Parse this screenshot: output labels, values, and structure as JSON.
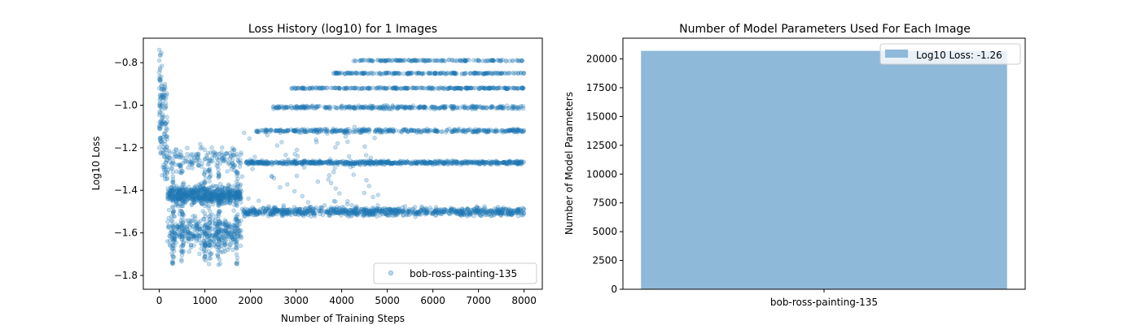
{
  "chart_data": [
    {
      "type": "scatter",
      "title": "Loss History (log10) for 1 Images",
      "xlabel": "Number of Training Steps",
      "ylabel": "Log10 Loss",
      "xlim": [
        -350,
        8400
      ],
      "ylim": [
        -1.865,
        -0.685
      ],
      "xticks": [
        0,
        1000,
        2000,
        3000,
        4000,
        5000,
        6000,
        7000,
        8000
      ],
      "yticks": [
        -1.8,
        -1.6,
        -1.4,
        -1.2,
        -1.0,
        -0.8
      ],
      "ytick_labels": [
        "−1.8",
        "−1.6",
        "−1.4",
        "−1.2",
        "−1.0",
        "−0.8"
      ],
      "color": "#1f77b4",
      "alpha": 0.25,
      "legend": {
        "placement": "lower-right",
        "entries": [
          "bob-ross-painting-135"
        ]
      },
      "grid": false,
      "series": [
        {
          "name": "bob-ross-painting-135",
          "x_range": [
            0,
            8000
          ],
          "bands": [
            {
              "level": -1.5,
              "x_start": 1800,
              "note": "lowest dense band"
            },
            {
              "level": -1.27,
              "x_start": 1900
            },
            {
              "level": -1.12,
              "x_start": 2100
            },
            {
              "level": -1.01,
              "x_start": 2500
            },
            {
              "level": -0.92,
              "x_start": 2900
            },
            {
              "level": -0.85,
              "x_start": 3800
            },
            {
              "level": -0.79,
              "x_start": 4200
            }
          ],
          "early_range": [
            -1.8,
            -0.73
          ]
        }
      ]
    },
    {
      "type": "bar",
      "title": "Number of Model Parameters Used For Each Image",
      "xlabel": "",
      "ylabel": "Number of Model Parameters",
      "categories": [
        "bob-ross-painting-135"
      ],
      "values": [
        20700
      ],
      "ylim": [
        0,
        21800
      ],
      "yticks": [
        0,
        2500,
        5000,
        7500,
        10000,
        12500,
        15000,
        17500,
        20000
      ],
      "color": "#8fb9d9",
      "legend": {
        "placement": "upper-right",
        "entries": [
          "Log10 Loss: -1.26"
        ]
      },
      "grid": false
    }
  ]
}
